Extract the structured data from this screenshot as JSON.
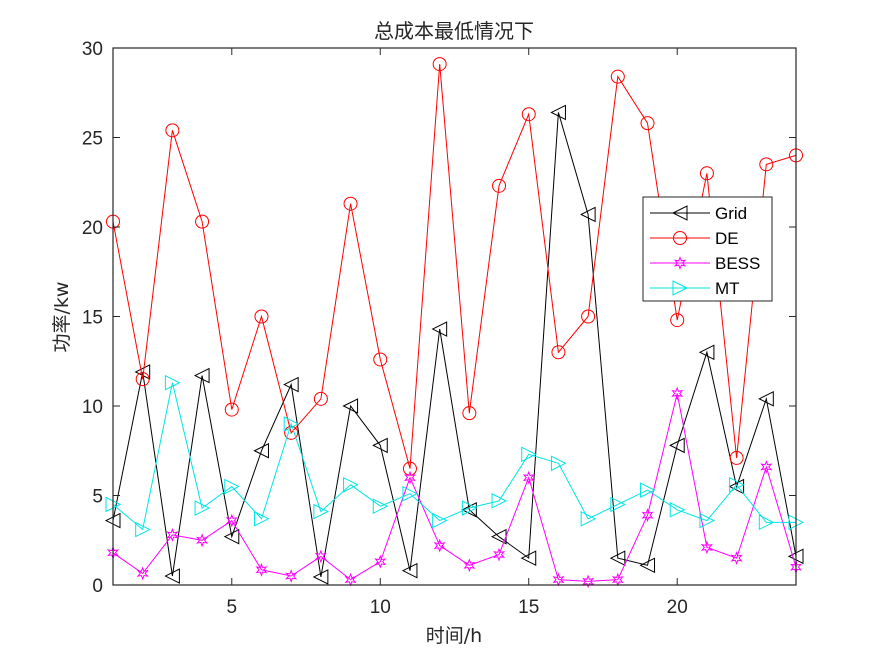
{
  "chart_data": {
    "type": "line",
    "title": "总成本最低情况下",
    "xlabel": "时间/h",
    "ylabel": "功率/kw",
    "xlim": [
      1,
      24
    ],
    "ylim": [
      0,
      30
    ],
    "xticks": [
      5,
      10,
      15,
      20
    ],
    "yticks": [
      0,
      5,
      10,
      15,
      20,
      25,
      30
    ],
    "grid": false,
    "legend_position": "upper right (inside, mid-height)",
    "x": [
      1,
      2,
      3,
      4,
      5,
      6,
      7,
      8,
      9,
      10,
      11,
      12,
      13,
      14,
      15,
      16,
      17,
      18,
      19,
      20,
      21,
      22,
      23,
      24
    ],
    "series": [
      {
        "name": "Grid",
        "color": "#000000",
        "marker": "triangle-left",
        "values": [
          3.6,
          11.9,
          0.5,
          11.7,
          2.7,
          7.5,
          11.2,
          0.45,
          10.0,
          7.8,
          0.8,
          14.3,
          4.2,
          2.7,
          1.5,
          26.4,
          20.7,
          1.5,
          1.1,
          7.8,
          13.0,
          5.5,
          10.4,
          1.6
        ]
      },
      {
        "name": "DE",
        "color": "#ff0000",
        "marker": "circle",
        "values": [
          20.3,
          11.5,
          25.4,
          20.3,
          9.8,
          15.0,
          8.5,
          10.4,
          21.3,
          12.6,
          6.5,
          29.1,
          9.6,
          22.3,
          26.3,
          13.0,
          15.0,
          28.4,
          25.8,
          14.8,
          23.0,
          7.1,
          23.5,
          24.0
        ]
      },
      {
        "name": "BESS",
        "color": "#ff00ff",
        "marker": "hexagram",
        "values": [
          1.8,
          0.65,
          2.8,
          2.5,
          3.6,
          0.85,
          0.5,
          1.6,
          0.3,
          1.3,
          6.0,
          2.2,
          1.1,
          1.7,
          6.0,
          0.3,
          0.2,
          0.3,
          3.9,
          10.7,
          2.1,
          1.5,
          6.6,
          1.0
        ]
      },
      {
        "name": "MT",
        "color": "#00e5e5",
        "marker": "triangle-right",
        "values": [
          4.5,
          3.1,
          11.3,
          4.3,
          5.5,
          3.7,
          9.0,
          4.1,
          5.6,
          4.4,
          5.1,
          3.6,
          4.3,
          4.7,
          7.3,
          6.8,
          3.7,
          4.5,
          5.3,
          4.2,
          3.6,
          5.6,
          3.5,
          3.5
        ]
      }
    ]
  },
  "legend": {
    "items": [
      {
        "label": "Grid"
      },
      {
        "label": "DE"
      },
      {
        "label": "BESS"
      },
      {
        "label": "MT"
      }
    ]
  },
  "axes": {
    "xtick_labels": [
      "5",
      "10",
      "15",
      "20"
    ],
    "ytick_labels": [
      "0",
      "5",
      "10",
      "15",
      "20",
      "25",
      "30"
    ]
  }
}
